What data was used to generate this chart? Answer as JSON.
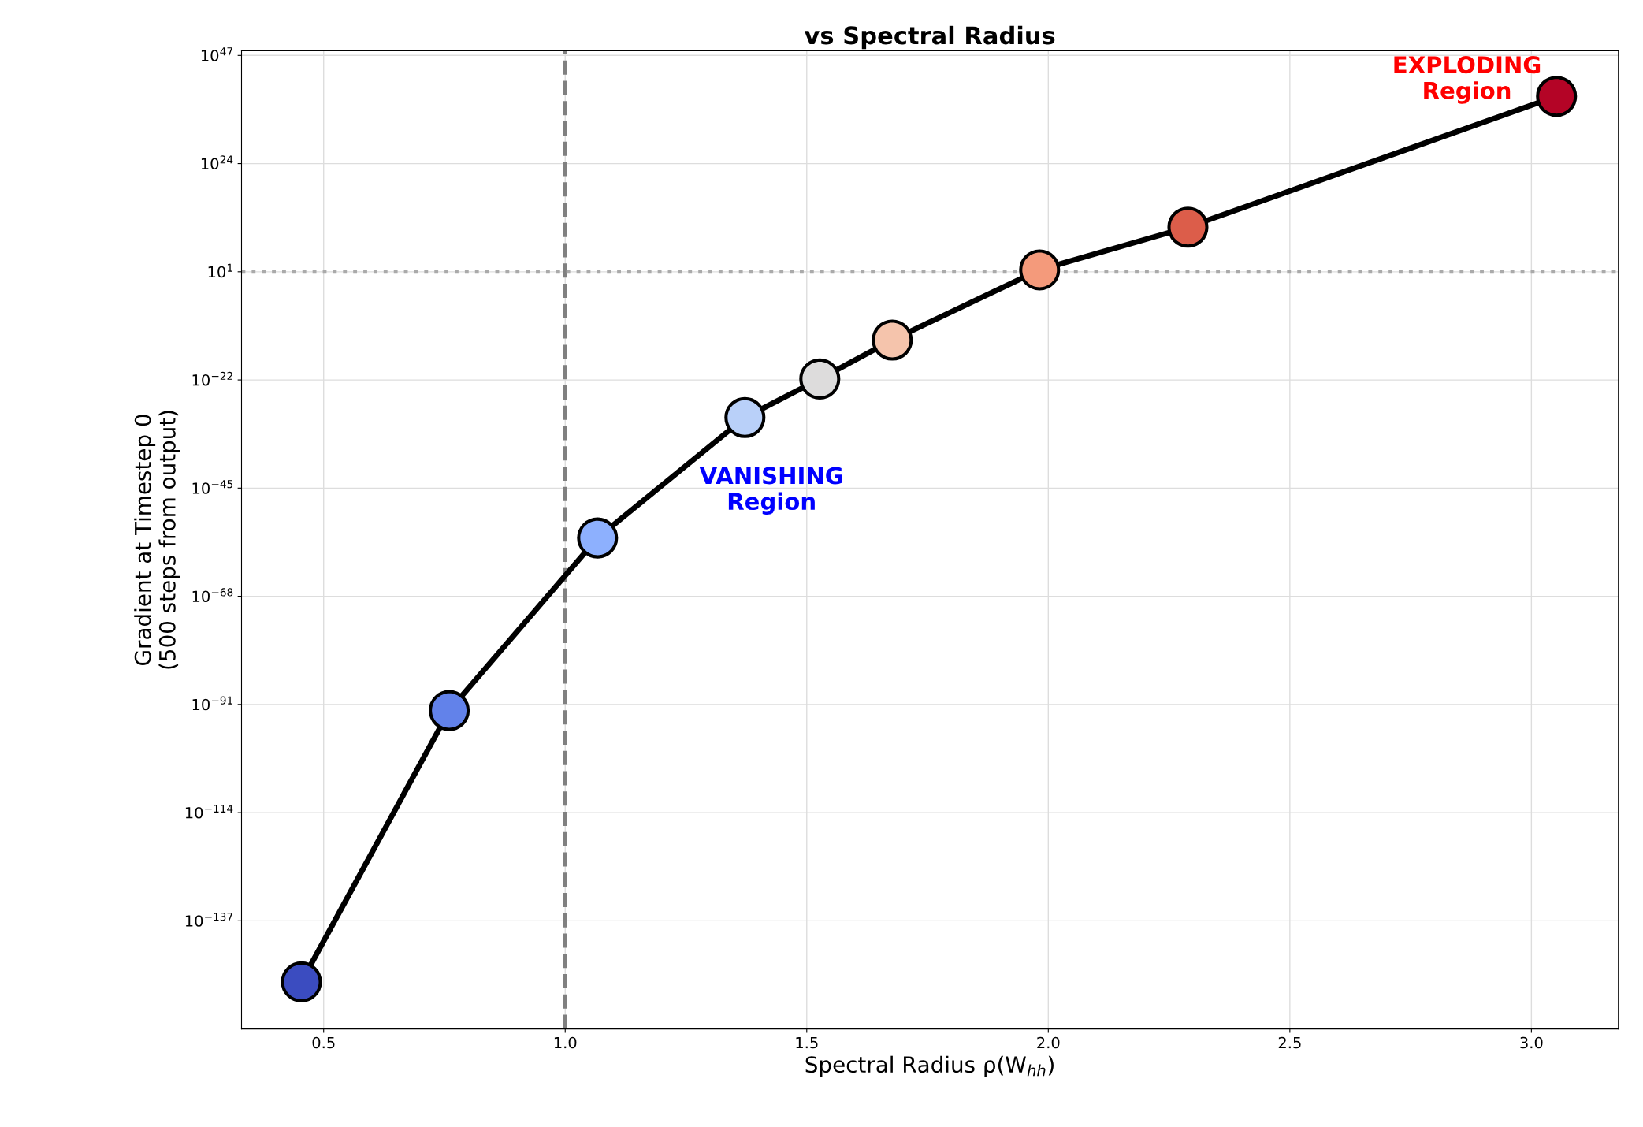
{
  "chart_data": {
    "type": "line",
    "title": "vs Spectral Radius",
    "xlabel": "Spectral Radius ρ(W$_{hh}$)",
    "ylabel": "Gradient at Timestep 0\n(500 steps from output)",
    "x": [
      0.454,
      0.76,
      1.067,
      1.372,
      1.527,
      1.677,
      1.982,
      2.289,
      3.052
    ],
    "series": [
      {
        "color": "#000000",
        "values": [
          1e-150,
          5e-93,
          2.5e-56,
          1e-30,
          1.6e-22,
          3e-14,
          25,
          30000000000.0,
          2e+38
        ],
        "colors": [
          "#3b4cc0",
          "#6282ea",
          "#8db0fe",
          "#b9d0f9",
          "#dddcdc",
          "#f5c4ac",
          "#f49a7b",
          "#dc5d4a",
          "#b40426"
        ]
      }
    ],
    "log": "y",
    "marker": "circle",
    "line_style": "solid",
    "grid": true,
    "xlim": [
      0.33,
      3.18
    ],
    "xticks": [
      0.5,
      {
        "value": 1,
        "label": "1.0"
      },
      1.5,
      {
        "value": 2,
        "label": "2.0"
      },
      2.5,
      {
        "value": 3,
        "label": "3.0"
      }
    ],
    "ylim": [
      1e-160,
      1e+48
    ],
    "yticks": [
      {
        "value": 1e-137,
        "label": "10$^{−137}$"
      },
      {
        "value": 1e-114,
        "label": "10$^{−114}$"
      },
      {
        "value": 1e-91,
        "label": "10$^{−91}$"
      },
      {
        "value": 1e-68,
        "label": "10$^{−68}$"
      },
      {
        "value": 1e-45,
        "label": "10$^{−45}$"
      },
      {
        "value": 1e-22,
        "label": "10$^{−22}$"
      },
      {
        "value": 10,
        "label": "10$^{1}$"
      },
      {
        "value": 1e+24,
        "label": "10$^{24}$"
      },
      {
        "value": 1e+47,
        "label": "10$^{47}$"
      }
    ],
    "ref_lines": [
      {
        "axis": "x",
        "value": 1.0,
        "color": "#808080",
        "line_style": "dashed"
      },
      {
        "axis": "y",
        "value": 10,
        "color": "#aaaaaa",
        "line_style": "dotted"
      }
    ],
    "annotations": [
      "VANISHING\nRegion",
      "EXPLODING\nRegion"
    ]
  }
}
